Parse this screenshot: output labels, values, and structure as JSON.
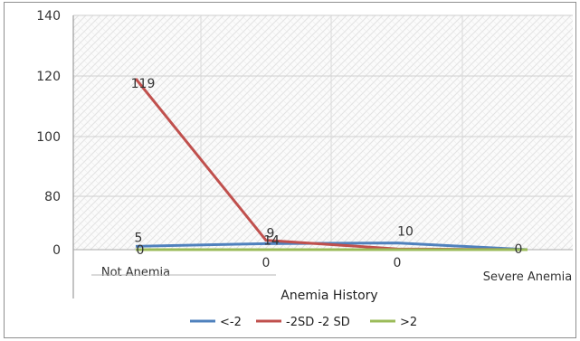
{
  "chart_data": {
    "type": "line",
    "categories": [
      "Not Anemia",
      "",
      "",
      "Severe Anemia"
    ],
    "series": [
      {
        "name": "<-2",
        "values": [
          5,
          9,
          10,
          0
        ],
        "color": "#4f81bd"
      },
      {
        "name": "-2SD -2 SD",
        "values": [
          119,
          14,
          1,
          0
        ],
        "color": "#c0504d"
      },
      {
        "name": ">2",
        "values": [
          0,
          0,
          0,
          0
        ],
        "color": "#9bbb59"
      }
    ],
    "category_value_labels": [
      "",
      "0",
      "0",
      "Severe Anemia"
    ],
    "y_ticks": [
      "140",
      "120",
      "100",
      "80",
      "0"
    ],
    "xlabel": "Anemia History",
    "ylabel": "",
    "ylim": [
      0,
      140
    ],
    "grid": true,
    "legend_position": "bottom"
  }
}
